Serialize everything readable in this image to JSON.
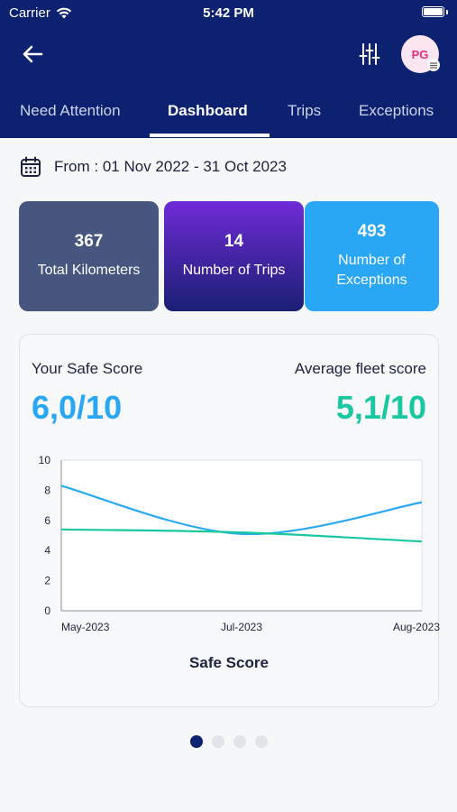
{
  "status": {
    "carrier": "Carrier",
    "time": "5:42 PM"
  },
  "header": {
    "avatar_initials": "PG"
  },
  "tabs": [
    {
      "label": "Need Attention",
      "active": false
    },
    {
      "label": "Dashboard",
      "active": true
    },
    {
      "label": "Trips",
      "active": false
    },
    {
      "label": "Exceptions",
      "active": false
    }
  ],
  "date_range": "From : 01 Nov 2022 - 31 Oct 2023",
  "cards": [
    {
      "value": "367",
      "label": "Total Kilometers"
    },
    {
      "value": "14",
      "label": "Number of Trips"
    },
    {
      "value": "493",
      "label": "Number of Exceptions"
    }
  ],
  "scores": {
    "your_label": "Your Safe Score",
    "your_value": "6,0/10",
    "avg_label": "Average fleet score",
    "avg_value": "5,1/10"
  },
  "colors": {
    "header": "#0c2170",
    "your_score": "#29a7f5",
    "fleet_score": "#19c7a0"
  },
  "chart_data": {
    "type": "line",
    "title": "Safe Score",
    "x_tick_labels": [
      "May-2023",
      "Jul-2023",
      "Aug-2023"
    ],
    "x": [
      "May-2023",
      "Jul-2023",
      "Aug-2023"
    ],
    "ylim": [
      0,
      10
    ],
    "y_ticks": [
      0,
      2,
      4,
      6,
      8,
      10
    ],
    "series": [
      {
        "color": "#2ba9f0",
        "values": [
          8.3,
          5.1,
          7.2
        ]
      },
      {
        "color": "#19c7a0",
        "values": [
          5.4,
          5.2,
          4.6
        ]
      }
    ],
    "grid": false,
    "legend": "none"
  },
  "pager": {
    "count": 4,
    "active": 0
  }
}
